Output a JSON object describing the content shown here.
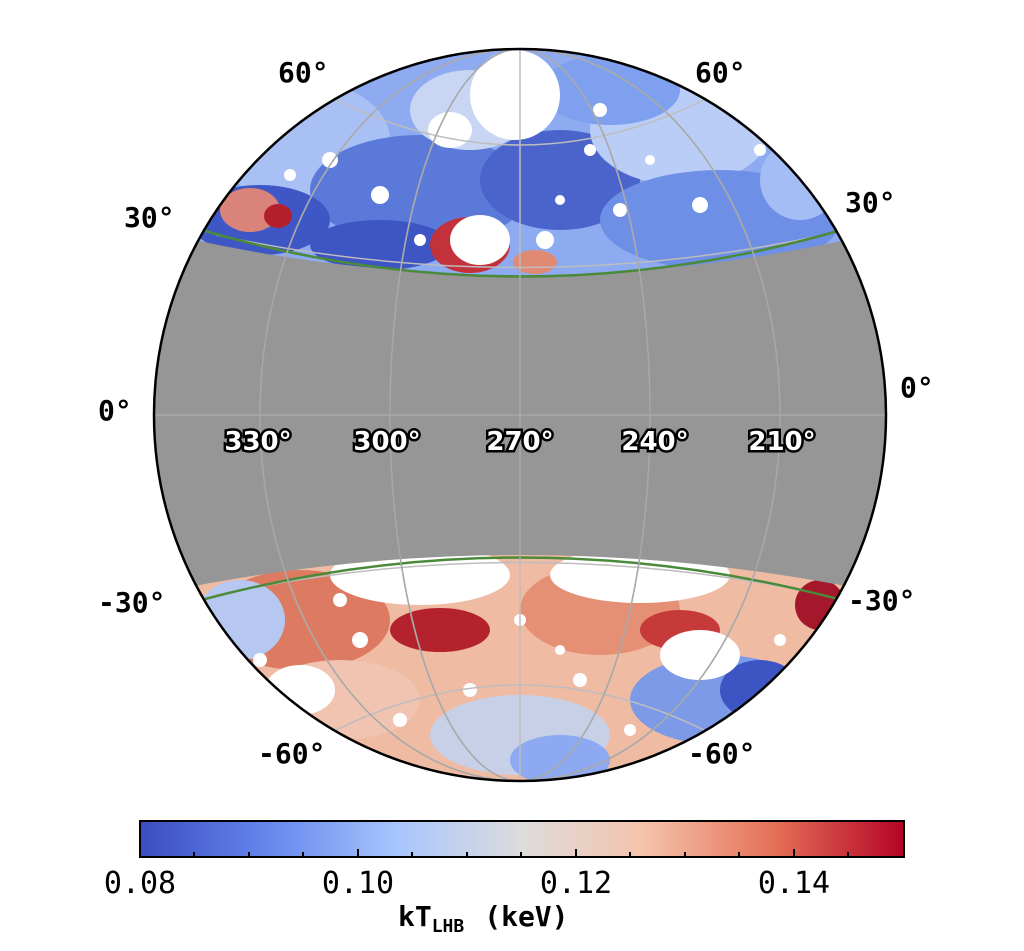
{
  "lat_labels": [
    {
      "text": "60°",
      "side": "left",
      "lat": 60
    },
    {
      "text": "60°",
      "side": "right",
      "lat": 60
    },
    {
      "text": "30°",
      "side": "left",
      "lat": 30
    },
    {
      "text": "30°",
      "side": "right",
      "lat": 30
    },
    {
      "text": "0°",
      "side": "left",
      "lat": 0
    },
    {
      "text": "0°",
      "side": "right",
      "lat": 0
    },
    {
      "text": "-30°",
      "side": "left",
      "lat": -30
    },
    {
      "text": "-30°",
      "side": "right",
      "lat": -30
    },
    {
      "text": "-60°",
      "side": "left",
      "lat": -60
    },
    {
      "text": "-60°",
      "side": "right",
      "lat": -60
    }
  ],
  "lon_labels": [
    "330°",
    "300°",
    "270°",
    "240°",
    "210°"
  ],
  "masked_band": {
    "lat_min": -20,
    "lat_max": 20,
    "color": "#969696",
    "edge_color": "#4a8a3a"
  },
  "colorbar": {
    "ticks": [
      "0.08",
      "0.10",
      "0.12",
      "0.14"
    ],
    "title_main": "kT",
    "title_sub": "LHB",
    "title_unit": "(keV)",
    "range": [
      0.08,
      0.15
    ],
    "colors": [
      "#3b4cc0",
      "#7b9ff9",
      "#c0d4f5",
      "#dddcdc",
      "#f2cbb7",
      "#ee8468",
      "#b40426"
    ]
  }
}
